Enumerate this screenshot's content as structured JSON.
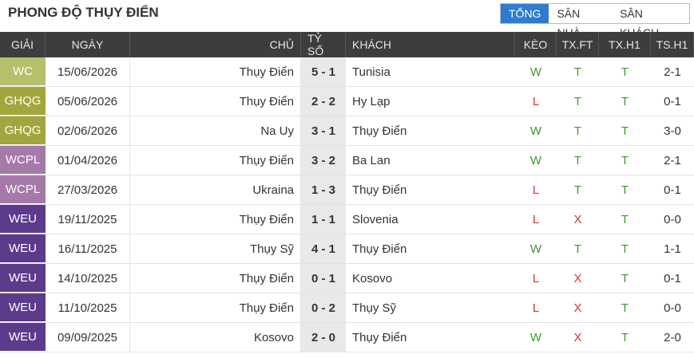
{
  "header": {
    "title": "PHONG ĐỘ THỤY ĐIỂN",
    "tabs": [
      "TỔNG",
      "SÂN NHÀ",
      "SÂN KHÁCH"
    ],
    "active_tab": 0
  },
  "table": {
    "columns": [
      "GIẢI",
      "NGÀY",
      "CHỦ",
      "TỶ SỐ",
      "KHÁCH",
      "KÈO",
      "TX.FT",
      "TX.H1",
      "TS.H1"
    ],
    "rows": [
      [
        "WC",
        "15/06/2026",
        "Thụy Điển",
        "5 - 1",
        "Tunisia",
        "W",
        "T",
        "T",
        "2-1"
      ],
      [
        "GHQG",
        "05/06/2026",
        "Thụy Điển",
        "2 - 2",
        "Hy Lạp",
        "L",
        "T",
        "T",
        "0-1"
      ],
      [
        "GHQG",
        "02/06/2026",
        "Na Uy",
        "3 - 1",
        "Thụy Điển",
        "W",
        "T",
        "T",
        "3-0"
      ],
      [
        "WCPL",
        "01/04/2026",
        "Thụy Điển",
        "3 - 2",
        "Ba Lan",
        "W",
        "T",
        "T",
        "2-1"
      ],
      [
        "WCPL",
        "27/03/2026",
        "Ukraina",
        "1 - 3",
        "Thụy Điển",
        "L",
        "T",
        "T",
        "0-1"
      ],
      [
        "WEU",
        "19/11/2025",
        "Thụy Điển",
        "1 - 1",
        "Slovenia",
        "L",
        "X",
        "T",
        "0-0"
      ],
      [
        "WEU",
        "16/11/2025",
        "Thụy Sỹ",
        "4 - 1",
        "Thụy Điển",
        "W",
        "T",
        "T",
        "1-1"
      ],
      [
        "WEU",
        "14/10/2025",
        "Thụy Điển",
        "0 - 1",
        "Kosovo",
        "L",
        "X",
        "T",
        "0-1"
      ],
      [
        "WEU",
        "11/10/2025",
        "Thụy Điển",
        "0 - 2",
        "Thụy Sỹ",
        "L",
        "X",
        "T",
        "0-0"
      ],
      [
        "WEU",
        "09/09/2025",
        "Kosovo",
        "2 - 0",
        "Thụy Điển",
        "W",
        "X",
        "T",
        "2-0"
      ]
    ],
    "league_colors": {
      "WC": "#b6bf6c",
      "GHQG": "#a3a63c",
      "WCPL": "#a57aa9",
      "WEU": "#5d3b8c"
    },
    "result_colors": {
      "W": "#3f9a2b",
      "L": "#d9322d",
      "T": "#3f9a2b",
      "X": "#d9322d"
    }
  }
}
